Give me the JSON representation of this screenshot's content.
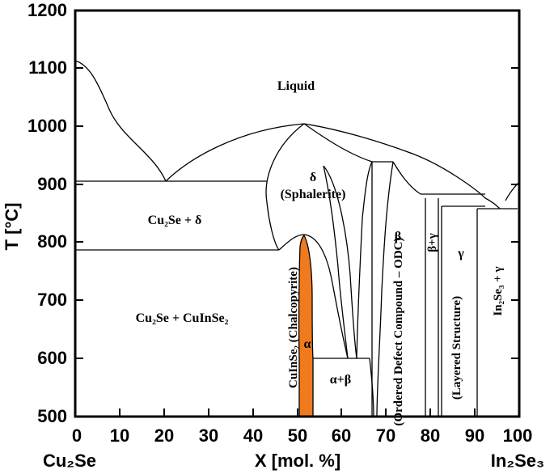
{
  "axes": {
    "y_title": "T [°C]",
    "x_title": "X [mol. %]",
    "y_ticks": [
      "500",
      "600",
      "700",
      "800",
      "900",
      "1000",
      "1100",
      "1200"
    ],
    "x_ticks": [
      "0",
      "10",
      "20",
      "30",
      "40",
      "50",
      "60",
      "70",
      "80",
      "90",
      "100"
    ],
    "x_end_left": "Cu₂Se",
    "x_end_right": "In₂Se₃"
  },
  "regions": {
    "liquid": "Liquid",
    "delta_symbol": "δ",
    "delta_name": "(Sphalerite)",
    "cu2se_delta": "Cu₂Se + δ",
    "cu2se_cuinse2": "Cu₂Se + CuInSe₂",
    "chalcopyrite": "CuInSe₂ (Chalcopyrite)",
    "alpha": "α",
    "alpha_beta": "α+β",
    "beta": "β",
    "odc": "(Ordered Defect Compound – ODC)",
    "beta_gamma": "β+γ",
    "gamma": "γ",
    "layered": "(Layered Structure)",
    "in2se3_gamma": "In₂Se₃ + γ"
  },
  "colors": {
    "alpha_phase": "#f07a1e",
    "lines": "#000000"
  }
}
